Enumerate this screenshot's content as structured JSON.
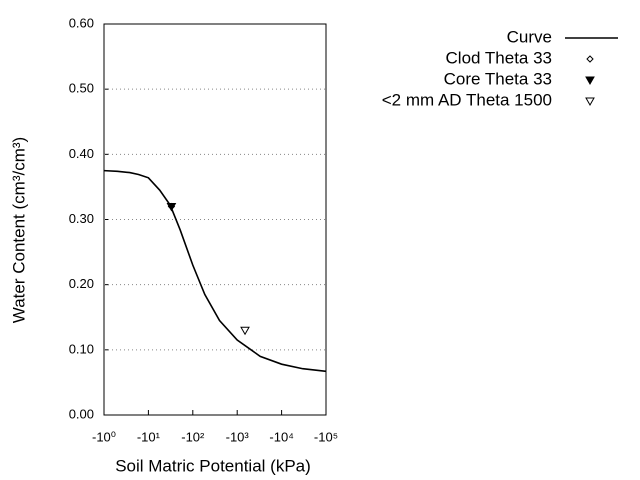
{
  "chart_data": {
    "type": "line",
    "xlabel": "Soil Matric Potential (kPa)",
    "ylabel": "Water Content (cm³/cm³)",
    "xscale": "log",
    "xlim": [
      -1,
      -100000
    ],
    "xticks": [
      {
        "value": -1,
        "label": "-10⁰"
      },
      {
        "value": -10,
        "label": "-10¹"
      },
      {
        "value": -100,
        "label": "-10²"
      },
      {
        "value": -1000,
        "label": "-10³"
      },
      {
        "value": -10000,
        "label": "-10⁴"
      },
      {
        "value": -100000,
        "label": "-10⁵"
      }
    ],
    "ylim": [
      0,
      0.6
    ],
    "yticks": [
      {
        "value": 0,
        "label": "0.00"
      },
      {
        "value": 0.1,
        "label": "0.10"
      },
      {
        "value": 0.2,
        "label": "0.20"
      },
      {
        "value": 0.3,
        "label": "0.30"
      },
      {
        "value": 0.4,
        "label": "0.40"
      },
      {
        "value": 0.5,
        "label": "0.50"
      },
      {
        "value": 0.6,
        "label": "0.60"
      }
    ],
    "grid": true,
    "legend": "top-right",
    "series": [
      {
        "name": "Curve",
        "style": "line",
        "color": "#000000",
        "x": [
          -1,
          -2,
          -3.8,
          -6,
          -10,
          -18,
          -31,
          -52,
          -100,
          -186,
          -400,
          -1000,
          -3300,
          -10000,
          -30000,
          -100000
        ],
        "values": [
          0.375,
          0.374,
          0.372,
          0.369,
          0.364,
          0.345,
          0.322,
          0.284,
          0.23,
          0.185,
          0.145,
          0.115,
          0.09,
          0.078,
          0.071,
          0.067
        ]
      },
      {
        "name": "Clod Theta 33",
        "style": "diamond",
        "color": "#000000",
        "x": [
          -33
        ],
        "values": [
          0.32
        ]
      },
      {
        "name": "Core Theta 33",
        "style": "triangle-filled",
        "color": "#000000",
        "x": [
          -33
        ],
        "values": [
          0.32
        ]
      },
      {
        "name": "<2 mm AD Theta 1500",
        "style": "triangle-open",
        "color": "#000000",
        "x": [
          -1500
        ],
        "values": [
          0.13
        ]
      }
    ]
  }
}
